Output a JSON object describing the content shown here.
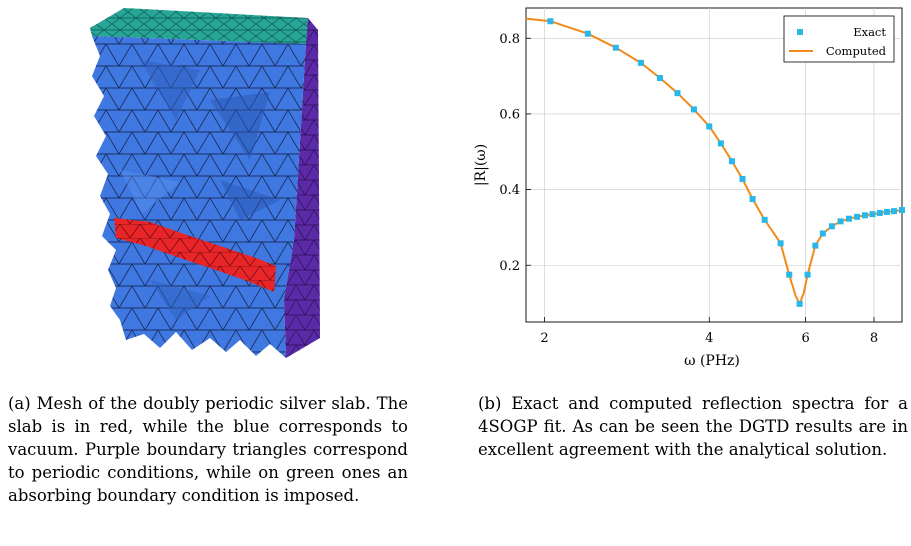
{
  "figure_a": {
    "caption": "(a) Mesh of the doubly periodic silver slab. The slab is in red, while the blue corresponds to vacuum. Purple boundary triangles correspond to periodic conditions, while on green ones an absorbing boundary condition is imposed.",
    "colors": {
      "vacuum": "#3f78e0",
      "slab": "#e8262a",
      "periodic": "#5b2aa6",
      "absorbing": "#27a596"
    }
  },
  "figure_b": {
    "caption": "(b) Exact and computed reflection spectra for a 4SOGP fit. As can be seen the DGTD results are in excellent agreement with the analytical solution."
  },
  "chart_data": {
    "type": "line",
    "xlabel": "ω (PHz)",
    "ylabel": "|R|(ω)",
    "x_scale": "log",
    "xlim": [
      1.85,
      9.0
    ],
    "ylim": [
      0.05,
      0.88
    ],
    "x_ticks": [
      2,
      4,
      6,
      8
    ],
    "y_ticks": [
      0.2,
      0.4,
      0.6,
      0.8
    ],
    "grid": true,
    "legend_position": "top-right",
    "series": [
      {
        "name": "Exact",
        "style": "markers",
        "color": "#29b6e8",
        "x": [
          2.05,
          2.4,
          2.7,
          3.0,
          3.25,
          3.5,
          3.75,
          4.0,
          4.2,
          4.4,
          4.6,
          4.8,
          5.05,
          5.4,
          5.6,
          5.85,
          6.05,
          6.25,
          6.45,
          6.7,
          6.95,
          7.2,
          7.45,
          7.7,
          7.95,
          8.2,
          8.45,
          8.7,
          9.0
        ],
        "y": [
          0.845,
          0.812,
          0.775,
          0.735,
          0.695,
          0.655,
          0.612,
          0.567,
          0.522,
          0.475,
          0.428,
          0.375,
          0.32,
          0.258,
          0.175,
          0.098,
          0.175,
          0.252,
          0.284,
          0.303,
          0.316,
          0.323,
          0.328,
          0.332,
          0.335,
          0.338,
          0.341,
          0.343,
          0.346
        ]
      },
      {
        "name": "Computed",
        "style": "line",
        "color": "#f28a1a",
        "x": [
          1.85,
          2.05,
          2.4,
          2.7,
          3.0,
          3.25,
          3.5,
          3.75,
          4.0,
          4.2,
          4.4,
          4.6,
          4.8,
          5.05,
          5.4,
          5.6,
          5.75,
          5.85,
          5.95,
          6.05,
          6.25,
          6.45,
          6.7,
          6.95,
          7.2,
          7.45,
          7.7,
          7.95,
          8.2,
          8.45,
          8.7,
          9.0
        ],
        "y": [
          0.852,
          0.845,
          0.812,
          0.775,
          0.735,
          0.695,
          0.655,
          0.612,
          0.567,
          0.522,
          0.475,
          0.428,
          0.375,
          0.32,
          0.258,
          0.175,
          0.12,
          0.098,
          0.125,
          0.175,
          0.252,
          0.284,
          0.303,
          0.316,
          0.323,
          0.328,
          0.332,
          0.335,
          0.338,
          0.341,
          0.343,
          0.346
        ]
      }
    ]
  }
}
